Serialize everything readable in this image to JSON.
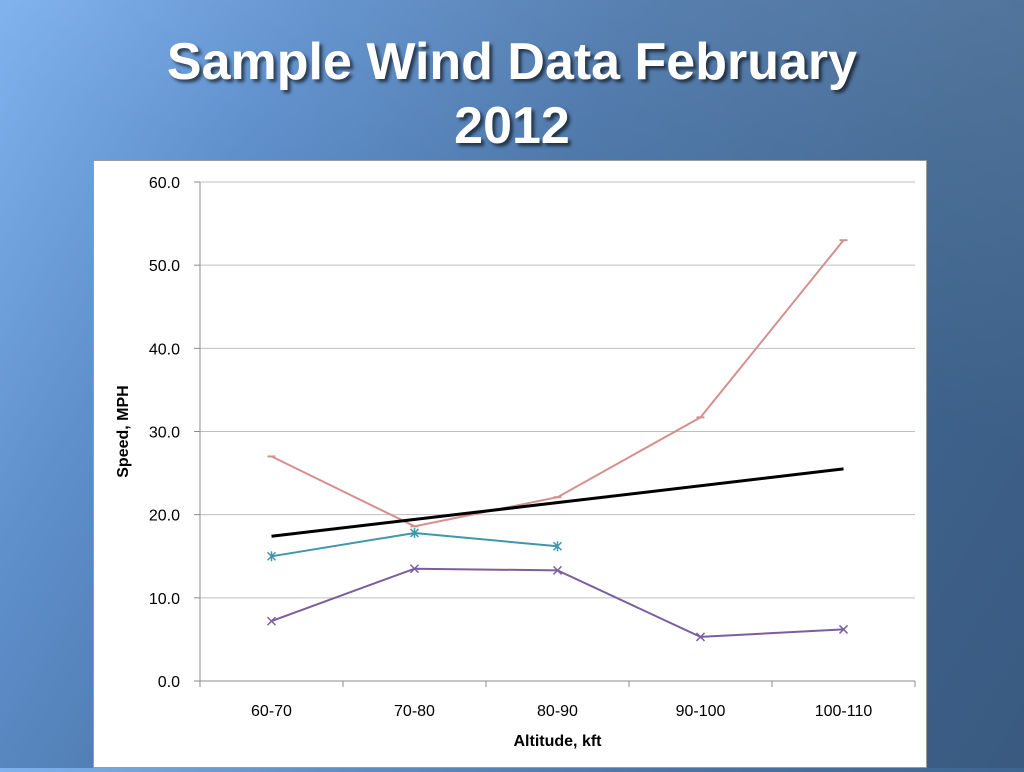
{
  "slide": {
    "title_line1": "Sample Wind Data February",
    "title_line2": "2012"
  },
  "chart_data": {
    "type": "line",
    "xlabel": "Altitude, kft",
    "ylabel": "Speed, MPH",
    "categories": [
      "60-70",
      "70-80",
      "80-90",
      "90-100",
      "100-110"
    ],
    "ylim": [
      0,
      60
    ],
    "yticks": [
      0,
      10,
      20,
      30,
      40,
      50,
      60
    ],
    "ytick_labels": [
      "0.0",
      "10.0",
      "20.0",
      "30.0",
      "40.0",
      "50.0",
      "60.0"
    ],
    "grid": "horizontal",
    "legend": "none",
    "series": [
      {
        "color": "#d4908c",
        "marker": "dash",
        "values": [
          27.0,
          18.6,
          22.1,
          31.7,
          53.0
        ]
      },
      {
        "color": "#3f97a8",
        "marker": "star",
        "values": [
          15.0,
          17.8,
          16.2,
          null,
          null
        ]
      },
      {
        "color": "#7a5fa0",
        "marker": "x",
        "values": [
          7.2,
          13.5,
          13.3,
          5.3,
          6.2
        ]
      },
      {
        "color": "#000000",
        "marker": "none",
        "trendline": true,
        "values": [
          17.4,
          null,
          null,
          null,
          25.5
        ]
      }
    ]
  }
}
